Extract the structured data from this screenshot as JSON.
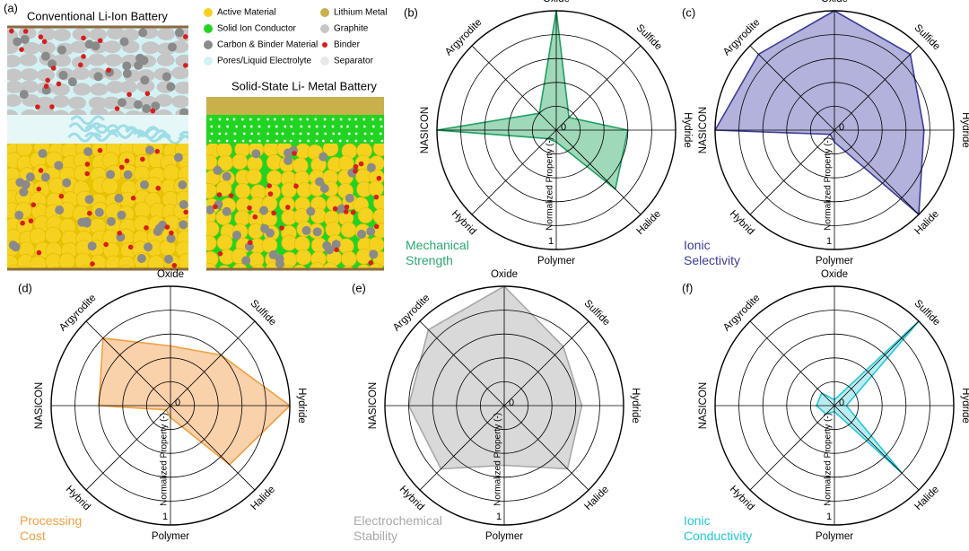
{
  "schematic": {
    "panel": "(a)",
    "conventional_title": "Conventional Li-Ion Battery",
    "solid_state_title": "Solid-State Li- Metal Battery",
    "legend": [
      {
        "label": "Active Material",
        "color": "#f5d21f"
      },
      {
        "label": "Solid Ion Conductor",
        "color": "#22d422"
      },
      {
        "label": "Carbon & Binder Material",
        "color": "#8a8a8a"
      },
      {
        "label": "Pores/Liquid Electrolyte",
        "color": "#d2f3f5"
      },
      {
        "label": "Lithium Metal",
        "color": "#c8b04a"
      },
      {
        "label": "Graphite",
        "color": "#c6c6c6"
      },
      {
        "label": "Binder",
        "color": "#d81d1d"
      },
      {
        "label": "Separator",
        "color": "#e8e8e8"
      }
    ]
  },
  "chart_data": [
    {
      "type": "radar",
      "panel": "(b)",
      "title": "Mechanical Strength",
      "color": "#1fa060",
      "fill": "#8fd1ae",
      "title_color": "#2aa870",
      "axes": [
        "Oxide",
        "Sulfide",
        "Hydride",
        "Halide",
        "Polymer",
        "Hybrid",
        "NASICON",
        "Argyrodite"
      ],
      "values": [
        1.0,
        0.15,
        0.6,
        0.7,
        0.1,
        0.1,
        1.0,
        0.2
      ],
      "rlim": [
        0,
        1
      ],
      "rticks": [
        0,
        1
      ],
      "grid_rings": 5,
      "radial_label": "Normalized Property (-)"
    },
    {
      "type": "radar",
      "panel": "(c)",
      "title": "Ionic Selectivity",
      "color": "#3c3c99",
      "fill": "#a5a5d6",
      "title_color": "#3c3c99",
      "axes": [
        "Oxide",
        "Sulfide",
        "Hydride",
        "Halide",
        "Polymer",
        "Hybrid",
        "NASICON",
        "Argyrodite"
      ],
      "values": [
        1.0,
        0.9,
        0.75,
        1.0,
        0.1,
        0.05,
        1.0,
        0.9
      ],
      "rlim": [
        0,
        1
      ],
      "rticks": [
        0,
        1
      ],
      "grid_rings": 5,
      "radial_label": "Normalized Property (-)"
    },
    {
      "type": "radar",
      "panel": "(d)",
      "title": "Processing Cost",
      "color": "#f0a040",
      "fill": "#f8c99c",
      "title_color": "#f0a040",
      "axes": [
        "Oxide",
        "Sulfide",
        "Hydride",
        "Halide",
        "Polymer",
        "Hybrid",
        "NASICON",
        "Argyrodite"
      ],
      "values": [
        0.5,
        0.6,
        1.0,
        0.7,
        0.1,
        0.05,
        0.6,
        0.8
      ],
      "rlim": [
        0,
        1
      ],
      "rticks": [
        0,
        1
      ],
      "grid_rings": 5,
      "radial_label": "Normalized Property (-)"
    },
    {
      "type": "radar",
      "panel": "(e)",
      "title": "Electrochemical Stability",
      "color": "#a8a8a8",
      "fill": "#d2d2d2",
      "title_color": "#a8a8a8",
      "axes": [
        "Oxide",
        "Sulfide",
        "Hydride",
        "Halide",
        "Polymer",
        "Hybrid",
        "NASICON",
        "Argyrodite"
      ],
      "values": [
        1.0,
        0.7,
        0.65,
        0.75,
        0.5,
        0.75,
        0.8,
        0.9
      ],
      "rlim": [
        0,
        1
      ],
      "rticks": [
        0,
        1
      ],
      "grid_rings": 5,
      "radial_label": "Normalized Property (-)"
    },
    {
      "type": "radar",
      "panel": "(f)",
      "title": "Ionic Conductivity",
      "color": "#22c8d8",
      "fill": "#aeeaf0",
      "title_color": "#22c8d8",
      "axes": [
        "Oxide",
        "Sulfide",
        "Hydride",
        "Halide",
        "Polymer",
        "Hybrid",
        "NASICON",
        "Argyrodite"
      ],
      "values": [
        0.05,
        1.0,
        0.1,
        0.8,
        0.05,
        0.1,
        0.15,
        0.15
      ],
      "rlim": [
        0,
        1
      ],
      "rticks": [
        0,
        1
      ],
      "grid_rings": 5,
      "radial_label": "Normalized Property (-)"
    }
  ]
}
